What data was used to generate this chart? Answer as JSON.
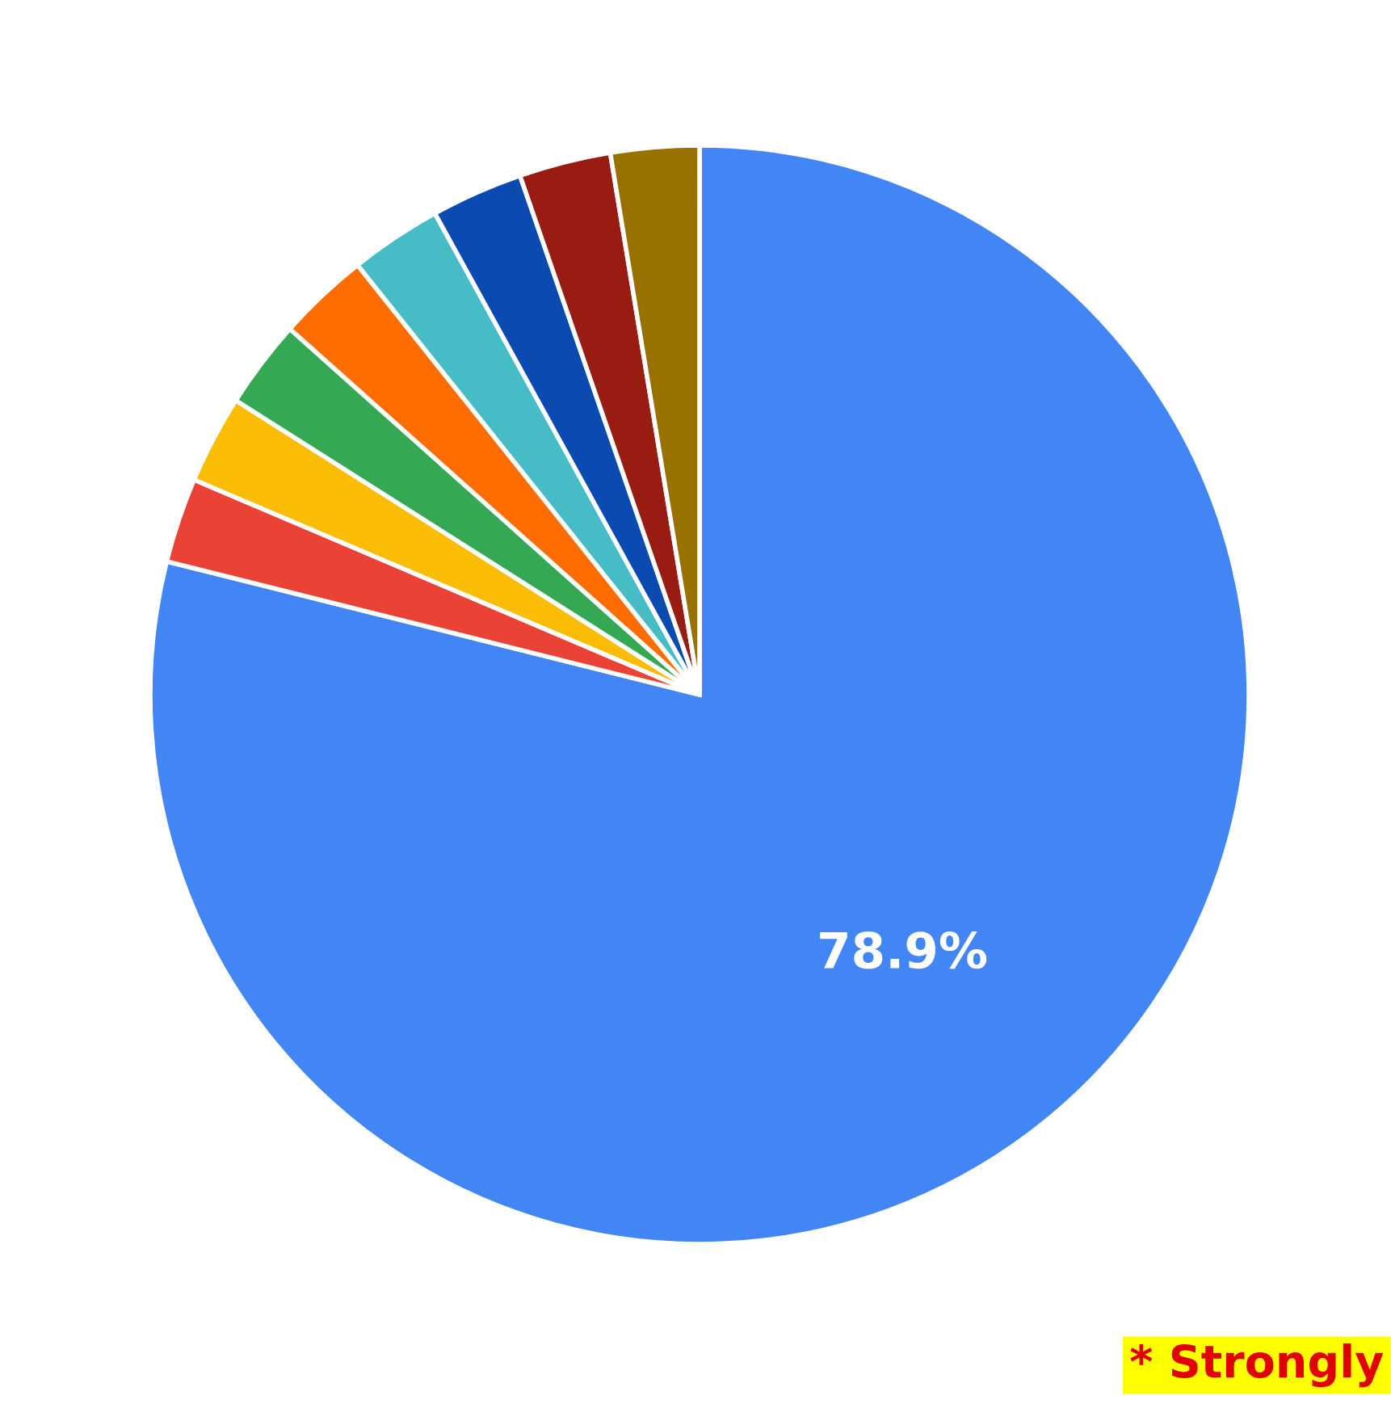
{
  "chart_data": {
    "type": "pie",
    "categories": [
      null,
      null,
      null,
      null,
      null,
      null,
      null,
      null,
      null
    ],
    "values": [
      78.9,
      2.5,
      2.6,
      2.6,
      2.7,
      2.7,
      2.7,
      2.7,
      2.6
    ],
    "colors": [
      "#4285f4",
      "#ea4335",
      "#fbbc04",
      "#34a853",
      "#ff6d01",
      "#46bdc6",
      "#0b4ab0",
      "#991c13",
      "#977200"
    ],
    "value_labels": [
      "78.9%",
      null,
      null,
      null,
      null,
      null,
      null,
      null,
      null
    ],
    "annotations": [
      "* Strongly"
    ],
    "legend": false
  }
}
